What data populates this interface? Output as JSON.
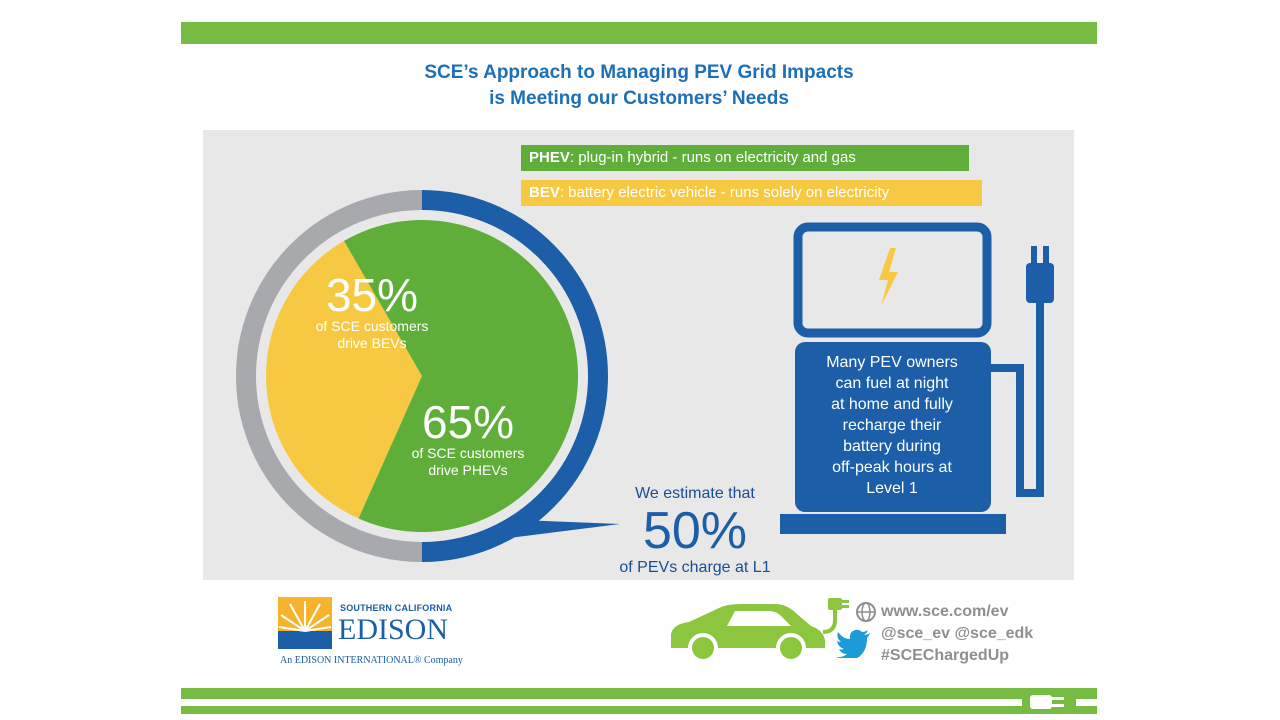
{
  "title": {
    "line1": "SCE’s Approach to Managing PEV Grid Impacts",
    "line2": "is Meeting our Customers’ Needs"
  },
  "legend": {
    "phev_term": "PHEV",
    "phev_desc": ": plug-in hybrid - runs on electricity and gas",
    "bev_term": "BEV",
    "bev_desc": ": battery electric vehicle - runs solely on electricity"
  },
  "chart_data": {
    "type": "pie",
    "title": "",
    "slices": [
      {
        "label": "35%",
        "value": 35,
        "caption": "of SCE customers drive BEVs",
        "color": "#f7c942"
      },
      {
        "label": "65%",
        "value": 65,
        "caption": "of SCE customers drive PHEVs",
        "color": "#5fae3a"
      }
    ],
    "ring": {
      "value": 50,
      "color_filled": "#1d5ea8",
      "color_rest": "#a7a9ac"
    }
  },
  "pie_labels": {
    "bev_pct": "35%",
    "bev_line1": "of SCE customers",
    "bev_line2": "drive BEVs",
    "phev_pct": "65%",
    "phev_line1": "of SCE customers",
    "phev_line2": "drive PHEVs"
  },
  "estimate": {
    "lead": "We estimate that",
    "pct": "50%",
    "tail": "of PEVs charge at L1"
  },
  "station_text": [
    "Many PEV owners",
    "can fuel at night",
    "at home and fully",
    "recharge their",
    "battery during",
    "off-peak hours at",
    "Level 1"
  ],
  "edison": {
    "top": "SOUTHERN CALIFORNIA",
    "name": "EDISON",
    "tagline": "An EDISON INTERNATIONAL® Company"
  },
  "social": {
    "web": "www.sce.com/ev",
    "handles": "@sce_ev @sce_edk",
    "hashtag": "#SCEChargedUp"
  },
  "colors": {
    "green": "#76bc43",
    "blue": "#1d5ea8",
    "yellow": "#f7c942",
    "gray": "#a7a9ac"
  },
  "icons": [
    "lightning-bolt-icon",
    "plug-icon",
    "globe-icon",
    "twitter-bird-icon",
    "electric-car-icon",
    "power-plug-icon"
  ]
}
